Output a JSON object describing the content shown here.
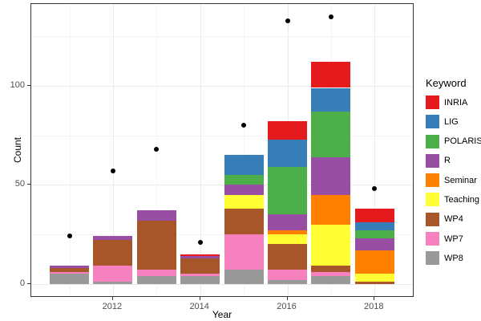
{
  "chart_data": {
    "type": "bar",
    "stacked": true,
    "title": "",
    "xlabel": "Year",
    "ylabel": "Count",
    "legend_title": "Keyword",
    "categories": [
      2011,
      2012,
      2013,
      2014,
      2015,
      2016,
      2017,
      2018
    ],
    "x_tick_labels": [
      "2012",
      "2014",
      "2016",
      "2018"
    ],
    "x_tick_years": [
      2012,
      2014,
      2016,
      2018
    ],
    "x_minor_years": [
      2011,
      2013,
      2015,
      2017
    ],
    "y_tick_labels": [
      "0",
      "50",
      "100"
    ],
    "y_ticks": [
      0,
      50,
      100
    ],
    "y_minor_ticks": [
      25,
      75,
      125
    ],
    "ylim": [
      -7,
      142
    ],
    "grid": true,
    "legend_position": "right",
    "stack_order_bottom_to_top": [
      "WP8",
      "WP7",
      "WP4",
      "Teaching",
      "Seminar",
      "R",
      "POLARIS",
      "LIG",
      "INRIA"
    ],
    "series": [
      {
        "name": "INRIA",
        "color": "#E41A1C",
        "values": [
          0,
          0,
          0,
          1,
          0,
          9,
          13,
          7
        ]
      },
      {
        "name": "LIG",
        "color": "#377EB8",
        "values": [
          0,
          0,
          0,
          0,
          10,
          14,
          12,
          4
        ]
      },
      {
        "name": "POLARIS",
        "color": "#4DAF4A",
        "values": [
          0,
          0,
          0,
          0,
          5,
          24,
          23,
          4
        ]
      },
      {
        "name": "R",
        "color": "#984EA3",
        "values": [
          1,
          2,
          5,
          1,
          5,
          8,
          19,
          6
        ]
      },
      {
        "name": "Seminar",
        "color": "#FF7F00",
        "values": [
          0,
          0,
          0,
          0,
          0,
          2,
          15,
          12
        ]
      },
      {
        "name": "Teaching",
        "color": "#FFFF33",
        "values": [
          0,
          0,
          0,
          0,
          7,
          5,
          21,
          4
        ]
      },
      {
        "name": "WP4",
        "color": "#A65628",
        "values": [
          2,
          13,
          25,
          8,
          13,
          13,
          3,
          1
        ]
      },
      {
        "name": "WP7",
        "color": "#F781BF",
        "values": [
          1,
          8,
          3,
          1,
          18,
          5,
          2,
          0
        ]
      },
      {
        "name": "WP8",
        "color": "#999999",
        "values": [
          5,
          1,
          4,
          4,
          7,
          2,
          4,
          0
        ]
      }
    ],
    "points_series": {
      "name": "total-points",
      "color": "#000000",
      "values": [
        24,
        57,
        68,
        21,
        80,
        133,
        135,
        48
      ]
    },
    "colors": {
      "panel_border": "#333333",
      "tick_text": "#4d4d4d",
      "grid_major": "#ebebeb",
      "grid_minor": "#f5f5f5",
      "background": "#ffffff"
    }
  }
}
